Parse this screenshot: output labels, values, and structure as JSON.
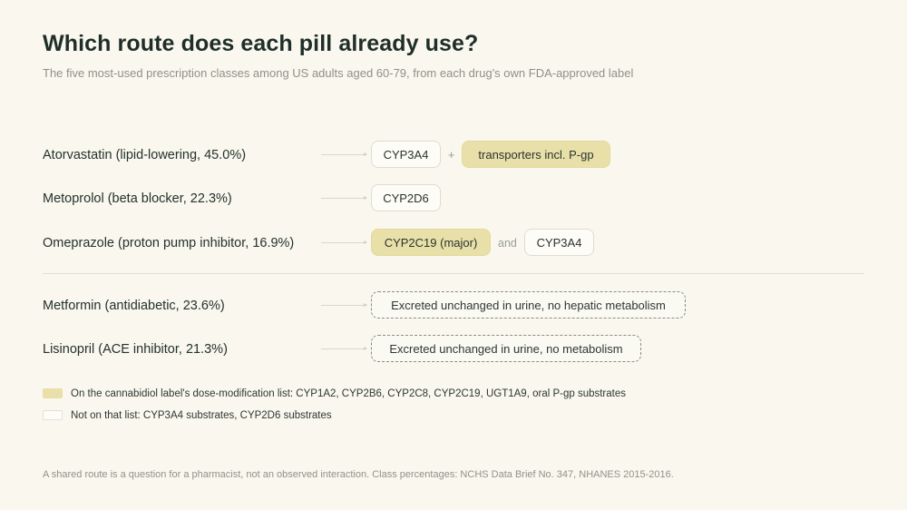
{
  "title": "Which route does each pill already use?",
  "subtitle": "The five most-used prescription classes among US adults aged 60-79, from each drug's own FDA-approved label",
  "colors": {
    "background": "#f9f7ee",
    "flagged_fill": "#e8e0a8",
    "plain_fill": "#fdfcf7",
    "no_metabolism_border": "#8a8d86"
  },
  "metabolized": [
    {
      "drug": "Atorvastatin (lipid-lowering, 45.0%)",
      "first_route": "CYP3A4",
      "first_flagged": false,
      "joiner": "+",
      "second_route": "transporters incl. P-gp",
      "second_flagged": true
    },
    {
      "drug": "Metoprolol (beta blocker, 22.3%)",
      "first_route": "CYP2D6",
      "first_flagged": false
    },
    {
      "drug": "Omeprazole (proton pump inhibitor, 16.9%)",
      "first_route": "CYP2C19 (major)",
      "first_flagged": true,
      "joiner": "and",
      "second_route": "CYP3A4",
      "second_flagged": false
    }
  ],
  "unmetabolized": [
    {
      "drug": "Metformin (antidiabetic, 23.6%)",
      "route": "Excreted unchanged in urine, no hepatic metabolism"
    },
    {
      "drug": "Lisinopril (ACE inhibitor, 21.3%)",
      "route": "Excreted unchanged in urine, no metabolism"
    }
  ],
  "legend": {
    "flagged": "On the cannabidiol label's dose-modification list: CYP1A2, CYP2B6, CYP2C8, CYP2C19, UGT1A9, oral P-gp substrates",
    "not_flagged": "Not on that list: CYP3A4 substrates, CYP2D6 substrates"
  },
  "footnote": "A shared route is a question for a pharmacist, not an observed interaction. Class percentages: NCHS Data Brief No. 347, NHANES 2015-2016."
}
